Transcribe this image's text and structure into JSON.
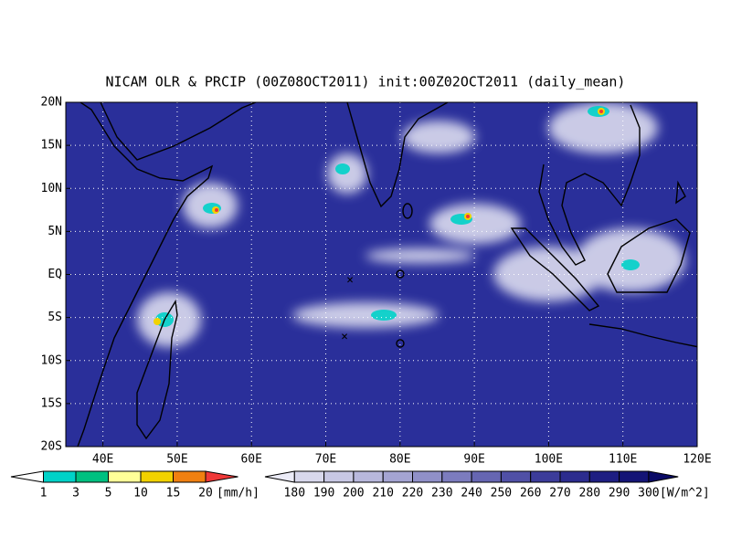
{
  "map": {
    "title": "NICAM OLR & PRCIP (00Z08OCT2011) init:00Z02OCT2011 (daily_mean)",
    "lonlim": [
      35,
      120
    ],
    "latlim": [
      -20,
      20
    ],
    "lonticks": [
      {
        "value": 40,
        "label": "40E"
      },
      {
        "value": 50,
        "label": "50E"
      },
      {
        "value": 60,
        "label": "60E"
      },
      {
        "value": 70,
        "label": "70E"
      },
      {
        "value": 80,
        "label": "80E"
      },
      {
        "value": 90,
        "label": "90E"
      },
      {
        "value": 100,
        "label": "100E"
      },
      {
        "value": 110,
        "label": "110E"
      },
      {
        "value": 120,
        "label": "120E"
      }
    ],
    "latticks": [
      {
        "value": 20,
        "label": "20N"
      },
      {
        "value": 15,
        "label": "15N"
      },
      {
        "value": 10,
        "label": "10N"
      },
      {
        "value": 5,
        "label": "5N"
      },
      {
        "value": 0,
        "label": "EQ"
      },
      {
        "value": -5,
        "label": "5S"
      },
      {
        "value": -10,
        "label": "10S"
      },
      {
        "value": -15,
        "label": "15S"
      },
      {
        "value": -20,
        "label": "20S"
      }
    ],
    "grid": true,
    "background": "#2a2f9a",
    "precip_colorbar": {
      "levels": [
        1,
        3,
        5,
        10,
        15,
        20
      ],
      "unit": "[mm/h]",
      "colors": [
        "#00d2c8",
        "#00c080",
        "#ffff98",
        "#f2d200",
        "#f08010"
      ],
      "under_color": "#ffffff",
      "over_color": "#f03838"
    },
    "olr_colorbar": {
      "levels": [
        180,
        190,
        200,
        210,
        220,
        230,
        240,
        250,
        260,
        270,
        280,
        290,
        300
      ],
      "unit": "[W/m^2]",
      "colors": [
        "#d8d8ec",
        "#c8c8e4",
        "#b8b8dc",
        "#a4a4d2",
        "#9090c8",
        "#7c7cbe",
        "#6666b2",
        "#5050a6",
        "#3c3c9a",
        "#2c2c8e",
        "#1e1e82",
        "#141476"
      ],
      "under_color": "#ececf8",
      "over_color": "#0a0a66"
    }
  }
}
